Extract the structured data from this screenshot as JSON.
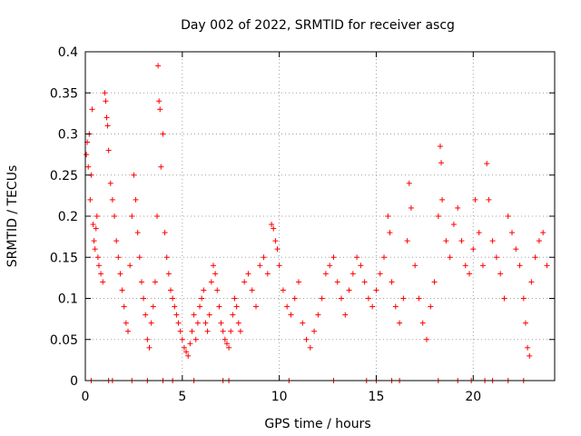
{
  "chart_data": {
    "type": "scatter",
    "title": "Day 002 of 2022, SRMTID for receiver ascg",
    "xlabel": "GPS time / hours",
    "ylabel": "SRMTID / TECUs",
    "xlim": [
      0,
      24.2
    ],
    "ylim": [
      0,
      0.4
    ],
    "xticks": [
      0,
      5,
      10,
      15,
      20
    ],
    "xtick_labels": [
      "0",
      "5",
      "10",
      "15",
      "20"
    ],
    "yticks": [
      0,
      0.05,
      0.1,
      0.15,
      0.2,
      0.25,
      0.3,
      0.35,
      0.4
    ],
    "ytick_labels": [
      "0",
      "0.05",
      "0.1",
      "0.15",
      "0.2",
      "0.25",
      "0.3",
      "0.35",
      "0.4"
    ],
    "grid": true,
    "marker": "plus",
    "series_color": "#ff0000",
    "series": [
      {
        "name": "SRMTID",
        "points": [
          [
            0.05,
            0.275
          ],
          [
            0.1,
            0.29
          ],
          [
            0.15,
            0.26
          ],
          [
            0.2,
            0.3
          ],
          [
            0.25,
            0.22
          ],
          [
            0.3,
            0.25
          ],
          [
            0.35,
            0.33
          ],
          [
            0.4,
            0.19
          ],
          [
            0.45,
            0.17
          ],
          [
            0.5,
            0.16
          ],
          [
            0.55,
            0.185
          ],
          [
            0.6,
            0.2
          ],
          [
            0.65,
            0.15
          ],
          [
            0.7,
            0.14
          ],
          [
            0.8,
            0.13
          ],
          [
            0.9,
            0.12
          ],
          [
            1.0,
            0.35
          ],
          [
            1.05,
            0.34
          ],
          [
            1.1,
            0.32
          ],
          [
            1.15,
            0.31
          ],
          [
            1.2,
            0.28
          ],
          [
            1.3,
            0.24
          ],
          [
            1.4,
            0.22
          ],
          [
            1.5,
            0.2
          ],
          [
            1.6,
            0.17
          ],
          [
            1.7,
            0.15
          ],
          [
            1.8,
            0.13
          ],
          [
            1.9,
            0.11
          ],
          [
            2.0,
            0.09
          ],
          [
            2.1,
            0.07
          ],
          [
            2.2,
            0.06
          ],
          [
            2.3,
            0.14
          ],
          [
            2.4,
            0.2
          ],
          [
            2.5,
            0.25
          ],
          [
            2.6,
            0.22
          ],
          [
            2.7,
            0.18
          ],
          [
            2.8,
            0.15
          ],
          [
            2.9,
            0.12
          ],
          [
            3.0,
            0.1
          ],
          [
            3.1,
            0.08
          ],
          [
            3.2,
            0.05
          ],
          [
            3.3,
            0.04
          ],
          [
            3.4,
            0.07
          ],
          [
            3.5,
            0.09
          ],
          [
            3.6,
            0.12
          ],
          [
            3.7,
            0.2
          ],
          [
            3.75,
            0.383
          ],
          [
            3.8,
            0.34
          ],
          [
            3.85,
            0.33
          ],
          [
            3.9,
            0.26
          ],
          [
            4.0,
            0.3
          ],
          [
            4.1,
            0.18
          ],
          [
            4.2,
            0.15
          ],
          [
            4.3,
            0.13
          ],
          [
            4.4,
            0.11
          ],
          [
            4.5,
            0.1
          ],
          [
            4.6,
            0.09
          ],
          [
            4.7,
            0.08
          ],
          [
            4.8,
            0.07
          ],
          [
            4.9,
            0.06
          ],
          [
            5.0,
            0.05
          ],
          [
            5.1,
            0.04
          ],
          [
            5.2,
            0.035
          ],
          [
            5.3,
            0.03
          ],
          [
            5.4,
            0.045
          ],
          [
            5.5,
            0.06
          ],
          [
            5.6,
            0.08
          ],
          [
            5.7,
            0.05
          ],
          [
            5.8,
            0.07
          ],
          [
            5.9,
            0.09
          ],
          [
            6.0,
            0.1
          ],
          [
            6.1,
            0.11
          ],
          [
            6.2,
            0.07
          ],
          [
            6.3,
            0.06
          ],
          [
            6.4,
            0.08
          ],
          [
            6.5,
            0.12
          ],
          [
            6.6,
            0.14
          ],
          [
            6.7,
            0.13
          ],
          [
            6.8,
            0.11
          ],
          [
            6.9,
            0.09
          ],
          [
            7.0,
            0.07
          ],
          [
            7.1,
            0.06
          ],
          [
            7.2,
            0.05
          ],
          [
            7.3,
            0.045
          ],
          [
            7.4,
            0.04
          ],
          [
            7.5,
            0.06
          ],
          [
            7.6,
            0.08
          ],
          [
            7.7,
            0.1
          ],
          [
            7.8,
            0.09
          ],
          [
            7.9,
            0.07
          ],
          [
            8.0,
            0.06
          ],
          [
            8.2,
            0.12
          ],
          [
            8.4,
            0.13
          ],
          [
            8.6,
            0.11
          ],
          [
            8.8,
            0.09
          ],
          [
            9.0,
            0.14
          ],
          [
            9.2,
            0.15
          ],
          [
            9.4,
            0.13
          ],
          [
            9.6,
            0.19
          ],
          [
            9.7,
            0.185
          ],
          [
            9.8,
            0.17
          ],
          [
            9.9,
            0.16
          ],
          [
            10.0,
            0.14
          ],
          [
            10.2,
            0.11
          ],
          [
            10.4,
            0.09
          ],
          [
            10.6,
            0.08
          ],
          [
            10.8,
            0.1
          ],
          [
            11.0,
            0.12
          ],
          [
            11.2,
            0.07
          ],
          [
            11.4,
            0.05
          ],
          [
            11.6,
            0.04
          ],
          [
            11.8,
            0.06
          ],
          [
            12.0,
            0.08
          ],
          [
            12.2,
            0.1
          ],
          [
            12.4,
            0.13
          ],
          [
            12.6,
            0.14
          ],
          [
            12.8,
            0.15
          ],
          [
            13.0,
            0.12
          ],
          [
            13.2,
            0.1
          ],
          [
            13.4,
            0.08
          ],
          [
            13.6,
            0.11
          ],
          [
            13.8,
            0.13
          ],
          [
            14.0,
            0.15
          ],
          [
            14.2,
            0.14
          ],
          [
            14.4,
            0.12
          ],
          [
            14.6,
            0.1
          ],
          [
            14.8,
            0.09
          ],
          [
            15.0,
            0.11
          ],
          [
            15.2,
            0.13
          ],
          [
            15.4,
            0.15
          ],
          [
            15.6,
            0.2
          ],
          [
            15.7,
            0.18
          ],
          [
            15.8,
            0.12
          ],
          [
            16.0,
            0.09
          ],
          [
            16.2,
            0.07
          ],
          [
            16.4,
            0.1
          ],
          [
            16.6,
            0.17
          ],
          [
            16.7,
            0.24
          ],
          [
            16.8,
            0.21
          ],
          [
            17.0,
            0.14
          ],
          [
            17.2,
            0.1
          ],
          [
            17.4,
            0.07
          ],
          [
            17.6,
            0.05
          ],
          [
            17.8,
            0.09
          ],
          [
            18.0,
            0.12
          ],
          [
            18.2,
            0.2
          ],
          [
            18.3,
            0.285
          ],
          [
            18.35,
            0.265
          ],
          [
            18.4,
            0.22
          ],
          [
            18.6,
            0.17
          ],
          [
            18.8,
            0.15
          ],
          [
            19.0,
            0.19
          ],
          [
            19.2,
            0.21
          ],
          [
            19.4,
            0.17
          ],
          [
            19.6,
            0.14
          ],
          [
            19.8,
            0.13
          ],
          [
            20.0,
            0.16
          ],
          [
            20.1,
            0.22
          ],
          [
            20.3,
            0.18
          ],
          [
            20.5,
            0.14
          ],
          [
            20.7,
            0.264
          ],
          [
            20.8,
            0.22
          ],
          [
            21.0,
            0.17
          ],
          [
            21.2,
            0.15
          ],
          [
            21.4,
            0.13
          ],
          [
            21.6,
            0.1
          ],
          [
            21.8,
            0.2
          ],
          [
            22.0,
            0.18
          ],
          [
            22.2,
            0.16
          ],
          [
            22.4,
            0.14
          ],
          [
            22.6,
            0.1
          ],
          [
            22.7,
            0.07
          ],
          [
            22.8,
            0.04
          ],
          [
            22.9,
            0.03
          ],
          [
            23.0,
            0.12
          ],
          [
            23.2,
            0.15
          ],
          [
            23.4,
            0.17
          ],
          [
            23.6,
            0.18
          ],
          [
            23.8,
            0.14
          ],
          [
            0.3,
            0
          ],
          [
            1.2,
            0
          ],
          [
            1.4,
            0
          ],
          [
            2.4,
            0
          ],
          [
            3.2,
            0
          ],
          [
            4.0,
            0
          ],
          [
            4.5,
            0
          ],
          [
            5.6,
            0
          ],
          [
            7.1,
            0
          ],
          [
            7.4,
            0
          ],
          [
            10.5,
            0
          ],
          [
            12.8,
            0
          ],
          [
            14.5,
            0
          ],
          [
            15.0,
            0
          ],
          [
            15.8,
            0
          ],
          [
            16.2,
            0
          ],
          [
            18.2,
            0
          ],
          [
            19.2,
            0
          ],
          [
            19.9,
            0
          ],
          [
            20.6,
            0
          ],
          [
            21.0,
            0
          ],
          [
            21.8,
            0
          ],
          [
            22.6,
            0
          ]
        ]
      }
    ]
  }
}
